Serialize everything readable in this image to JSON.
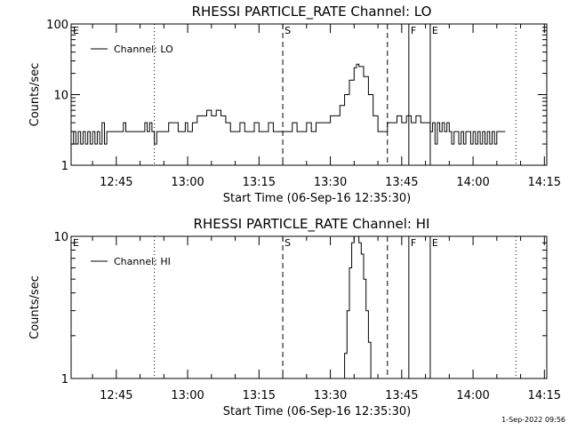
{
  "footer": {
    "timestamp": "1-Sep-2022 09:56"
  },
  "chart_data": [
    {
      "type": "line",
      "title": "RHESSI PARTICLE_RATE Channel: LO",
      "xlabel": "Start Time (06-Sep-16 12:35:30)",
      "ylabel": "Counts/sec",
      "yscale": "log",
      "xlim": [
        "12:35:30",
        "14:15:30"
      ],
      "ylim": [
        1,
        100
      ],
      "x_ticks": [
        "12:45",
        "13:00",
        "13:15",
        "13:30",
        "13:45",
        "14:00",
        "14:15"
      ],
      "y_ticks": [
        "1",
        "10",
        "100"
      ],
      "legend": {
        "position": "top-left",
        "entries": [
          "Channel: LO"
        ]
      },
      "series": [
        {
          "name": "Channel: LO",
          "points": [
            [
              "12:35:30",
              2
            ],
            [
              "12:36:00",
              3
            ],
            [
              "12:36:30",
              2
            ],
            [
              "12:37:00",
              3
            ],
            [
              "12:37:30",
              2
            ],
            [
              "12:38:00",
              3
            ],
            [
              "12:38:30",
              2
            ],
            [
              "12:39:00",
              3
            ],
            [
              "12:39:30",
              2
            ],
            [
              "12:40:00",
              3
            ],
            [
              "12:40:30",
              2
            ],
            [
              "12:41:00",
              3
            ],
            [
              "12:41:30",
              2
            ],
            [
              "12:42:00",
              4
            ],
            [
              "12:42:30",
              2
            ],
            [
              "12:43:00",
              3
            ],
            [
              "12:43:30",
              3
            ],
            [
              "12:44:00",
              3
            ],
            [
              "12:45:00",
              3
            ],
            [
              "12:46:00",
              3
            ],
            [
              "12:46:30",
              4
            ],
            [
              "12:47:00",
              3
            ],
            [
              "12:48:00",
              3
            ],
            [
              "12:49:00",
              3
            ],
            [
              "12:50:00",
              3
            ],
            [
              "12:50:30",
              3
            ],
            [
              "12:51:00",
              4
            ],
            [
              "12:51:30",
              3
            ],
            [
              "12:52:00",
              4
            ],
            [
              "12:52:30",
              3
            ],
            [
              "12:53:00",
              2
            ],
            [
              "12:53:30",
              3
            ],
            [
              "12:54:00",
              3
            ],
            [
              "12:55:00",
              3
            ],
            [
              "12:56:00",
              4
            ],
            [
              "12:57:00",
              4
            ],
            [
              "12:58:00",
              3
            ],
            [
              "12:59:00",
              3
            ],
            [
              "12:59:30",
              4
            ],
            [
              "13:00:00",
              3
            ],
            [
              "13:01:00",
              4
            ],
            [
              "13:02:00",
              5
            ],
            [
              "13:03:00",
              5
            ],
            [
              "13:04:00",
              6
            ],
            [
              "13:05:00",
              5
            ],
            [
              "13:06:00",
              6
            ],
            [
              "13:07:00",
              5
            ],
            [
              "13:08:00",
              4
            ],
            [
              "13:09:00",
              3
            ],
            [
              "13:10:00",
              3
            ],
            [
              "13:11:00",
              4
            ],
            [
              "13:12:00",
              3
            ],
            [
              "13:13:00",
              3
            ],
            [
              "13:14:00",
              4
            ],
            [
              "13:15:00",
              3
            ],
            [
              "13:16:00",
              3
            ],
            [
              "13:17:00",
              4
            ],
            [
              "13:18:00",
              3
            ],
            [
              "13:19:00",
              3
            ],
            [
              "13:20:00",
              3
            ],
            [
              "13:21:00",
              3
            ],
            [
              "13:22:00",
              4
            ],
            [
              "13:23:00",
              3
            ],
            [
              "13:24:00",
              3
            ],
            [
              "13:25:00",
              4
            ],
            [
              "13:26:00",
              3
            ],
            [
              "13:27:00",
              4
            ],
            [
              "13:28:00",
              4
            ],
            [
              "13:29:00",
              4
            ],
            [
              "13:30:00",
              5
            ],
            [
              "13:31:00",
              5
            ],
            [
              "13:32:00",
              7
            ],
            [
              "13:33:00",
              10
            ],
            [
              "13:34:00",
              16
            ],
            [
              "13:35:00",
              24
            ],
            [
              "13:35:30",
              27
            ],
            [
              "13:36:00",
              25
            ],
            [
              "13:37:00",
              18
            ],
            [
              "13:38:00",
              10
            ],
            [
              "13:39:00",
              5
            ],
            [
              "13:40:00",
              3
            ],
            [
              "13:41:00",
              3
            ],
            [
              "13:42:00",
              4
            ],
            [
              "13:43:00",
              4
            ],
            [
              "13:44:00",
              5
            ],
            [
              "13:45:00",
              4
            ],
            [
              "13:46:00",
              5
            ],
            [
              "13:47:00",
              4
            ],
            [
              "13:48:00",
              5
            ],
            [
              "13:49:00",
              4
            ],
            [
              "13:50:00",
              4
            ],
            [
              "13:51:00",
              3
            ],
            [
              "13:51:30",
              4
            ],
            [
              "13:52:00",
              2
            ],
            [
              "13:52:30",
              4
            ],
            [
              "13:53:00",
              3
            ],
            [
              "13:53:30",
              4
            ],
            [
              "13:54:00",
              3
            ],
            [
              "13:54:30",
              4
            ],
            [
              "13:55:00",
              3
            ],
            [
              "13:55:30",
              2
            ],
            [
              "13:56:00",
              3
            ],
            [
              "13:56:30",
              3
            ],
            [
              "13:57:00",
              2
            ],
            [
              "13:57:30",
              3
            ],
            [
              "13:58:00",
              2
            ],
            [
              "13:58:30",
              3
            ],
            [
              "13:59:00",
              3
            ],
            [
              "13:59:30",
              2
            ],
            [
              "14:00:00",
              3
            ],
            [
              "14:00:30",
              2
            ],
            [
              "14:01:00",
              3
            ],
            [
              "14:01:30",
              2
            ],
            [
              "14:02:00",
              3
            ],
            [
              "14:02:30",
              2
            ],
            [
              "14:03:00",
              3
            ],
            [
              "14:03:30",
              2
            ],
            [
              "14:04:00",
              3
            ],
            [
              "14:04:30",
              2
            ],
            [
              "14:05:00",
              3
            ],
            [
              "14:06:00",
              3
            ]
          ]
        }
      ],
      "markers": [
        {
          "label": "E",
          "time": "12:35:30",
          "style": "none"
        },
        {
          "label": "",
          "time": "12:53:00",
          "style": "dotted"
        },
        {
          "label": "S",
          "time": "13:20:00",
          "style": "dashed"
        },
        {
          "label": "",
          "time": "13:42:00",
          "style": "dashed"
        },
        {
          "label": "F",
          "time": "13:46:30",
          "style": "solid"
        },
        {
          "label": "E",
          "time": "13:51:00",
          "style": "solid"
        },
        {
          "label": "",
          "time": "14:09:00",
          "style": "dotted"
        }
      ]
    },
    {
      "type": "line",
      "title": "RHESSI PARTICLE_RATE Channel: HI",
      "xlabel": "Start Time (06-Sep-16 12:35:30)",
      "ylabel": "Counts/sec",
      "yscale": "log",
      "xlim": [
        "12:35:30",
        "14:15:30"
      ],
      "ylim": [
        1,
        10
      ],
      "x_ticks": [
        "12:45",
        "13:00",
        "13:15",
        "13:30",
        "13:45",
        "14:00",
        "14:15"
      ],
      "y_ticks": [
        "1",
        "10"
      ],
      "legend": {
        "position": "top-left",
        "entries": [
          "Channel: HI"
        ]
      },
      "series": [
        {
          "name": "Channel: HI",
          "points": [
            [
              "13:32:30",
              1
            ],
            [
              "13:33:00",
              1.5
            ],
            [
              "13:33:30",
              3
            ],
            [
              "13:34:00",
              6
            ],
            [
              "13:34:30",
              9
            ],
            [
              "13:35:00",
              10
            ],
            [
              "13:35:30",
              10
            ],
            [
              "13:36:00",
              9
            ],
            [
              "13:36:30",
              7.5
            ],
            [
              "13:37:00",
              5
            ],
            [
              "13:37:30",
              3
            ],
            [
              "13:38:00",
              1.8
            ],
            [
              "13:38:30",
              1
            ]
          ]
        }
      ],
      "markers": [
        {
          "label": "E",
          "time": "12:35:30",
          "style": "none"
        },
        {
          "label": "",
          "time": "12:53:00",
          "style": "dotted"
        },
        {
          "label": "S",
          "time": "13:20:00",
          "style": "dashed"
        },
        {
          "label": "",
          "time": "13:42:00",
          "style": "dashed"
        },
        {
          "label": "F",
          "time": "13:46:30",
          "style": "solid"
        },
        {
          "label": "E",
          "time": "13:51:00",
          "style": "solid"
        },
        {
          "label": "",
          "time": "14:09:00",
          "style": "dotted"
        }
      ]
    }
  ]
}
